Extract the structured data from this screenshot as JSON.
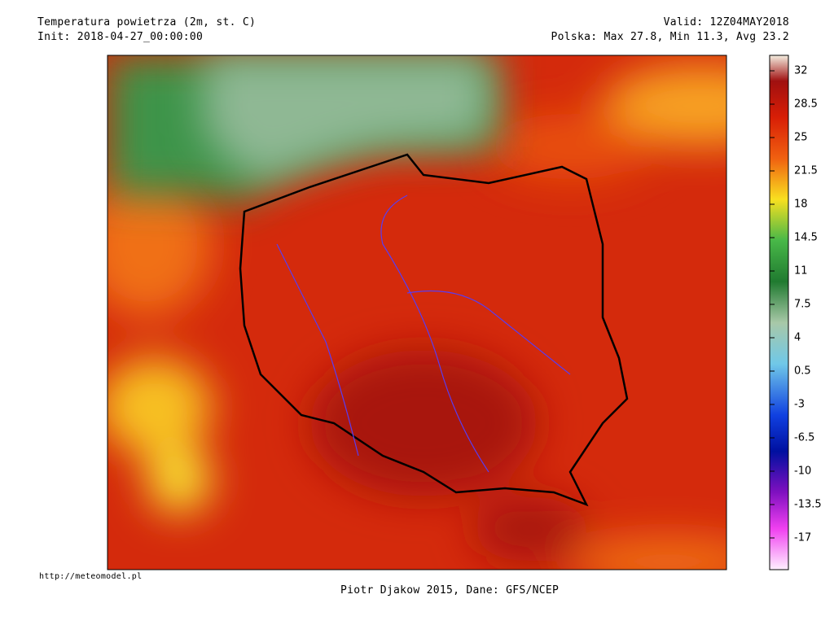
{
  "header": {
    "title": "Temperatura powietrza (2m, st. C)",
    "init": "Init: 2018-04-27_00:00:00",
    "valid": "Valid: 12Z04MAY2018",
    "stats": "Polska: Max 27.8, Min 11.3, Avg 23.2"
  },
  "colorbar": {
    "labels": [
      32,
      28.5,
      25,
      21.5,
      18,
      14.5,
      11,
      7.5,
      4,
      0.5,
      -3,
      -6.5,
      -10,
      -13.5,
      -17
    ]
  },
  "footer": {
    "url": "http://meteomodel.pl",
    "credit": "Piotr Djakow 2015, Dane: GFS/NCEP"
  }
}
